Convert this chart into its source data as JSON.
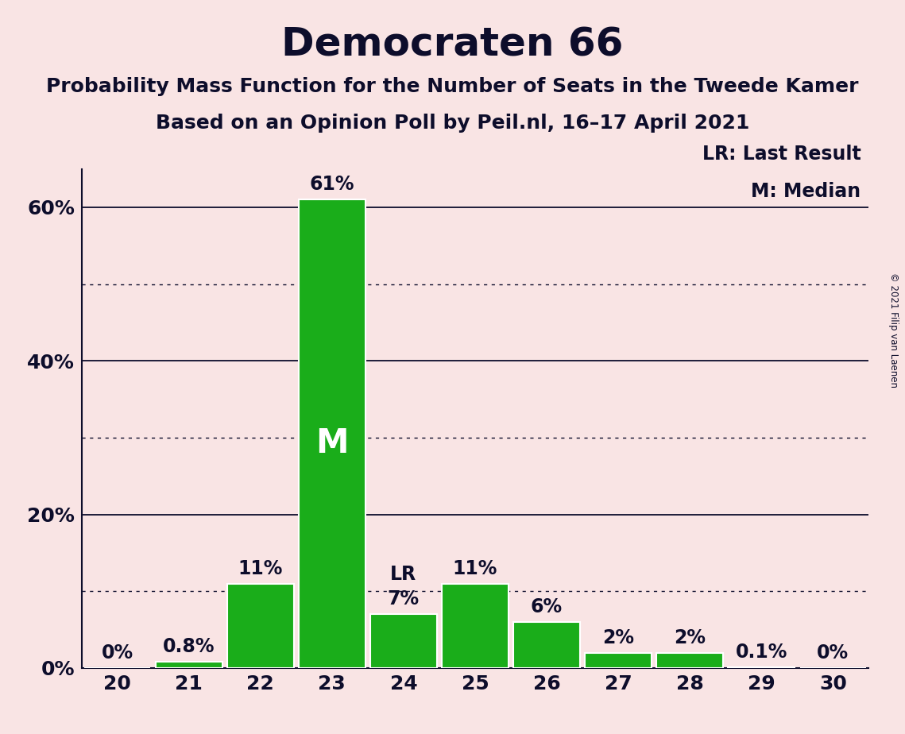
{
  "title": "Democraten 66",
  "subtitle1": "Probability Mass Function for the Number of Seats in the Tweede Kamer",
  "subtitle2": "Based on an Opinion Poll by Peil.nl, 16–17 April 2021",
  "copyright": "© 2021 Filip van Laenen",
  "seats": [
    20,
    21,
    22,
    23,
    24,
    25,
    26,
    27,
    28,
    29,
    30
  ],
  "probabilities": [
    0.0,
    0.8,
    11.0,
    61.0,
    7.0,
    11.0,
    6.0,
    2.0,
    2.0,
    0.1,
    0.0
  ],
  "labels": [
    "0%",
    "0.8%",
    "11%",
    "61%",
    "7%",
    "11%",
    "6%",
    "2%",
    "2%",
    "0.1%",
    "0%"
  ],
  "bar_color": "#1aad1a",
  "background_color": "#f9e4e4",
  "median_seat": 23,
  "lr_seat": 24,
  "ylim": [
    0,
    65
  ],
  "yticks": [
    0,
    20,
    40,
    60
  ],
  "ytick_labels": [
    "0%",
    "20%",
    "40%",
    "60%"
  ],
  "solid_gridlines": [
    20,
    40,
    60
  ],
  "dotted_gridlines": [
    10,
    30,
    50
  ],
  "legend_lr": "LR: Last Result",
  "legend_m": "M: Median",
  "title_fontsize": 36,
  "subtitle_fontsize": 18,
  "label_fontsize": 17,
  "tick_fontsize": 18,
  "legend_fontsize": 17,
  "median_label_fontsize": 30
}
